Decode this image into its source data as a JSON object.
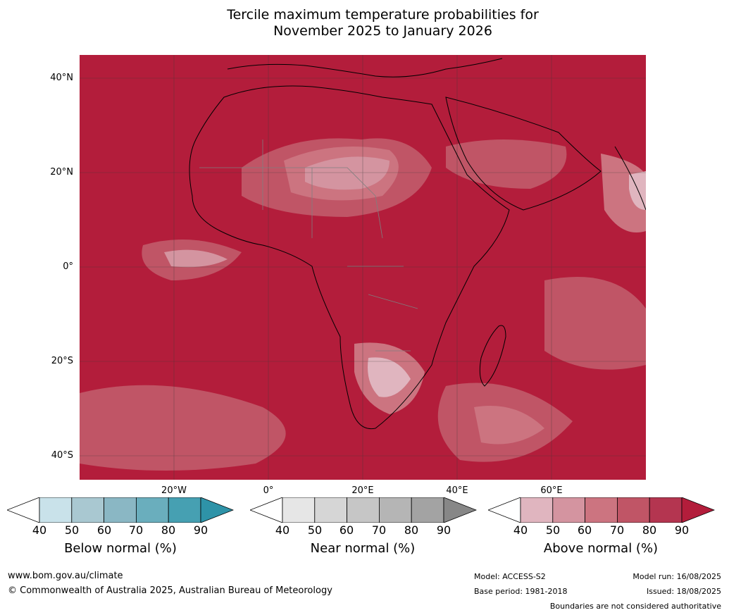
{
  "title": {
    "line1": "Tercile maximum temperature probabilities for",
    "line2": "November 2025 to January 2026"
  },
  "map": {
    "lat_labels": [
      "40°N",
      "20°N",
      "0°",
      "20°S",
      "40°S"
    ],
    "lon_labels": [
      "20°W",
      "0°",
      "20°E",
      "40°E",
      "60°E"
    ],
    "dominant_color": "#b31d3b",
    "land_border_color": "#000000",
    "country_border_color": "#7f7f7f"
  },
  "colorbars": {
    "tick_labels": [
      "40",
      "50",
      "60",
      "70",
      "80",
      "90"
    ],
    "below": {
      "title": "Below normal (%)",
      "colors": [
        "#ffffff",
        "#c9e2ea",
        "#a9c8d1",
        "#8ab7c4",
        "#6aaebd",
        "#46a0b2",
        "#2e93a8"
      ]
    },
    "near": {
      "title": "Near normal (%)",
      "colors": [
        "#ffffff",
        "#e6e6e6",
        "#d6d6d6",
        "#c6c6c6",
        "#b5b5b5",
        "#a3a3a3",
        "#878787"
      ]
    },
    "above": {
      "title": "Above normal (%)",
      "colors": [
        "#ffffff",
        "#e0b5bf",
        "#d494a0",
        "#cc7480",
        "#c05566",
        "#b43550",
        "#b31d3b"
      ]
    }
  },
  "footer": {
    "website": "www.bom.gov.au/climate",
    "copyright": "© Commonwealth of Australia 2025, Australian Bureau of Meteorology",
    "model": "Model: ACCESS-S2",
    "base_period": "Base period: 1981-2018",
    "model_run": "Model run: 16/08/2025",
    "issued": "Issued: 18/08/2025",
    "disclaimer": "Boundaries are not considered authoritative"
  }
}
